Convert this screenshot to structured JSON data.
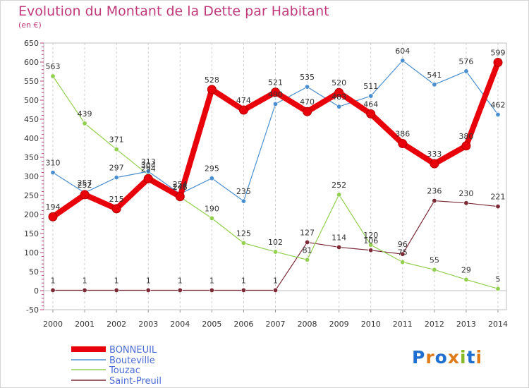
{
  "chart_data": {
    "type": "line",
    "title": "Evolution du Montant de la Dette par Habitant",
    "subtitle": "(en €)",
    "xlabel": "",
    "ylabel": "",
    "ylim": [
      -50,
      650
    ],
    "y_ticks": [
      -50,
      0,
      50,
      100,
      150,
      200,
      250,
      300,
      350,
      400,
      450,
      500,
      550,
      600,
      650
    ],
    "x": [
      "2000",
      "2001",
      "2002",
      "2003",
      "2004",
      "2005",
      "2006",
      "2007",
      "2008",
      "2009",
      "2010",
      "2011",
      "2012",
      "2013",
      "2014"
    ],
    "grid": "vertical dashed",
    "legend_position": "bottom-left",
    "series": [
      {
        "name": "BONNEUIL",
        "color": "#e8000b",
        "values": [
          194,
          252,
          215,
          294,
          247,
          528,
          474,
          521,
          470,
          520,
          464,
          386,
          333,
          380,
          599
        ]
      },
      {
        "name": "Bouteville",
        "color": "#4b8fd0",
        "values": [
          310,
          257,
          297,
          313,
          254,
          295,
          235,
          490,
          535,
          483,
          511,
          604,
          541,
          576,
          462
        ]
      },
      {
        "name": "Touzac",
        "color": "#92d050",
        "values": [
          563,
          439,
          371,
          304,
          246,
          190,
          125,
          102,
          81,
          252,
          120,
          75,
          55,
          29,
          5
        ]
      },
      {
        "name": "Saint-Preuil",
        "color": "#7b2a36",
        "values": [
          1,
          1,
          1,
          1,
          1,
          1,
          1,
          1,
          127,
          114,
          106,
          96,
          236,
          230,
          221
        ]
      }
    ]
  },
  "logo": {
    "text": "Proxiti",
    "letters": [
      "P",
      "r",
      "o",
      "x",
      "i",
      "t",
      "i"
    ],
    "colors": [
      "#1f6fd0",
      "#e07b1a",
      "#1f6fd0",
      "#e07b1a",
      "#88b926",
      "#1f6fd0",
      "#e07b1a"
    ]
  }
}
